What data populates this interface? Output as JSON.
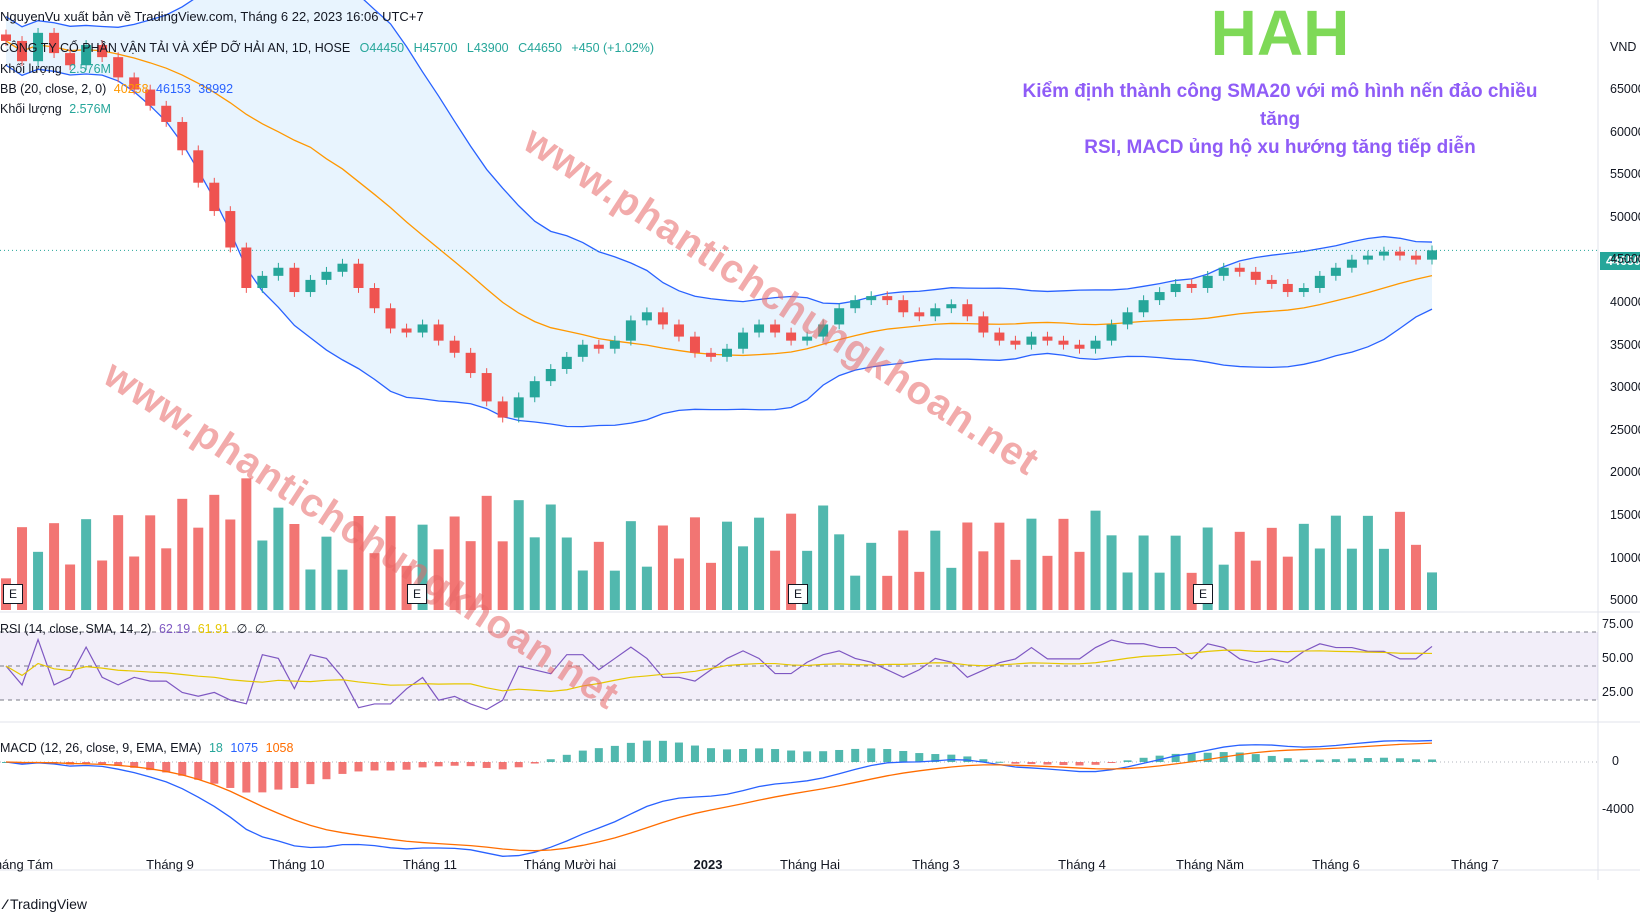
{
  "header": {
    "publisher": "NguyenVu xuất bản về TradingView.com, Tháng 6 22, 2023 16:06 UTC+7",
    "symbol_line": "CÔNG TY CỔ PHẦN VẬN TẢI VÀ XẾP DỠ HẢI AN, 1D, HOSE",
    "ohlc": {
      "o": "O44450",
      "h": "H45700",
      "l": "L43900",
      "c": "C44650",
      "chg": "+450 (+1.02%)"
    },
    "volume_label": "Khối lượng",
    "volume_value": "2.576M",
    "bb_label": "BB (20, close, 2, 0)",
    "bb_values": [
      "40258",
      "46153",
      "38992"
    ],
    "volume_label2": "Khối lượng",
    "volume_value2": "2.576M"
  },
  "headline": "HAH",
  "annotation": {
    "line1": "Kiểm định thành công SMA20 với mô hình nến đảo chiều tăng",
    "line2": "RSI, MACD ủng hộ xu hướng tăng tiếp diễn"
  },
  "watermark": "www.phantichchungkhoan.net",
  "price_tag": "44650",
  "currency": "VND",
  "footer": "TradingView",
  "earnings_badge": "E",
  "colors": {
    "up": "#26a69a",
    "down": "#ef5350",
    "bb_band": "#2962ff",
    "bb_basis": "#ff9800",
    "rsi": "#7e57c2",
    "rsi_ma": "#ffeb3b",
    "macd": "#2962ff",
    "signal": "#ff6d00",
    "headline": "#7ed957",
    "annotation": "#8f5cf7"
  },
  "rsi_legend": {
    "label": "RSI (14, close, SMA, 14, 2)",
    "v1": "62.19",
    "v2": "61.91",
    "v3": "∅",
    "v4": "∅"
  },
  "macd_legend": {
    "label": "MACD (12, 26, close, 9, EMA, EMA)",
    "v1": "18",
    "v2": "1075",
    "v3": "1058"
  },
  "price_axis": [
    "65000",
    "60000",
    "55000",
    "50000",
    "45000",
    "40000",
    "35000",
    "30000",
    "25000",
    "20000",
    "15000",
    "10000",
    "5000"
  ],
  "rsi_axis": [
    "75.00",
    "50.00",
    "25.00"
  ],
  "macd_axis": [
    "0",
    "-4000"
  ],
  "time_axis": [
    "Tháng Tám",
    "Tháng 9",
    "Tháng 10",
    "Tháng 11",
    "Tháng Mười hai",
    "2023",
    "Tháng Hai",
    "Tháng 3",
    "Tháng 4",
    "Tháng Năm",
    "Tháng 6",
    "Tháng 7"
  ],
  "chart_data": {
    "type": "candlestick",
    "series": [
      {
        "name": "Price close (approx)",
        "values": [
          70500,
          68000,
          71500,
          69000,
          67500,
          70000,
          68500,
          66000,
          64500,
          62500,
          60500,
          57000,
          53000,
          49500,
          45000,
          40000,
          41500,
          42500,
          39500,
          41000,
          42000,
          43000,
          40000,
          37500,
          35000,
          34500,
          35500,
          33500,
          32000,
          29500,
          26000,
          24000,
          26500,
          28500,
          30000,
          31500,
          33000,
          32500,
          33500,
          36000,
          37000,
          35500,
          34000,
          32000,
          31500,
          32500,
          34500,
          35500,
          34500,
          33500,
          34000,
          35500,
          37500,
          38500,
          39000,
          38500,
          37000,
          36500,
          37500,
          38000,
          36500,
          34500,
          33500,
          33000,
          34000,
          33500,
          33000,
          32500,
          33500,
          35500,
          37000,
          38500,
          39500,
          40500,
          40000,
          41500,
          42500,
          42000,
          41000,
          40500,
          39500,
          40000,
          41500,
          42500,
          43500,
          44000,
          44500,
          44000,
          43500,
          44650
        ]
      }
    ],
    "events": [
      "Tháng Tám",
      "Tháng 11",
      "Tháng Hai",
      "Tháng Năm"
    ]
  }
}
